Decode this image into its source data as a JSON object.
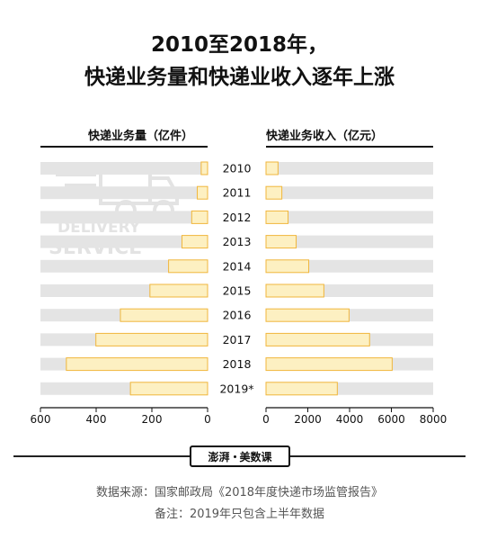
{
  "title_line1": "2010至2018年，",
  "title_line2": "快递业务量和快递业收入逐年上涨",
  "logo": {
    "left": "澎湃",
    "right": "美数课"
  },
  "watermark": {
    "line1": "DELIVERY",
    "line2": "SERVICE"
  },
  "source": "数据来源：国家邮政局《2018年度快递市场监管报告》",
  "footnote": "备注：2019年只包含上半年数据",
  "chart_data": {
    "type": "bar",
    "categories": [
      "2010",
      "2011",
      "2012",
      "2013",
      "2014",
      "2015",
      "2016",
      "2017",
      "2018",
      "2019*"
    ],
    "panels": [
      {
        "title": "快递业务量（亿件）",
        "direction": "left",
        "xlim": [
          0,
          600
        ],
        "ticks": [
          "600",
          "400",
          "200",
          "0"
        ],
        "tick_values": [
          600,
          400,
          200,
          0
        ],
        "values": [
          23,
          37,
          57,
          92,
          140,
          207,
          313,
          401,
          507,
          277
        ]
      },
      {
        "title": "快递业务收入（亿元）",
        "direction": "right",
        "xlim": [
          0,
          8000
        ],
        "ticks": [
          "0",
          "2000",
          "4000",
          "6000",
          "8000"
        ],
        "tick_values": [
          0,
          2000,
          4000,
          6000,
          8000
        ],
        "values": [
          575,
          758,
          1055,
          1442,
          2045,
          2770,
          3974,
          4957,
          6038,
          3412
        ]
      }
    ],
    "colors": {
      "bar_fill": "#fdf0c2",
      "bar_stroke": "#f0b63c",
      "track": "#e4e4e4"
    }
  }
}
